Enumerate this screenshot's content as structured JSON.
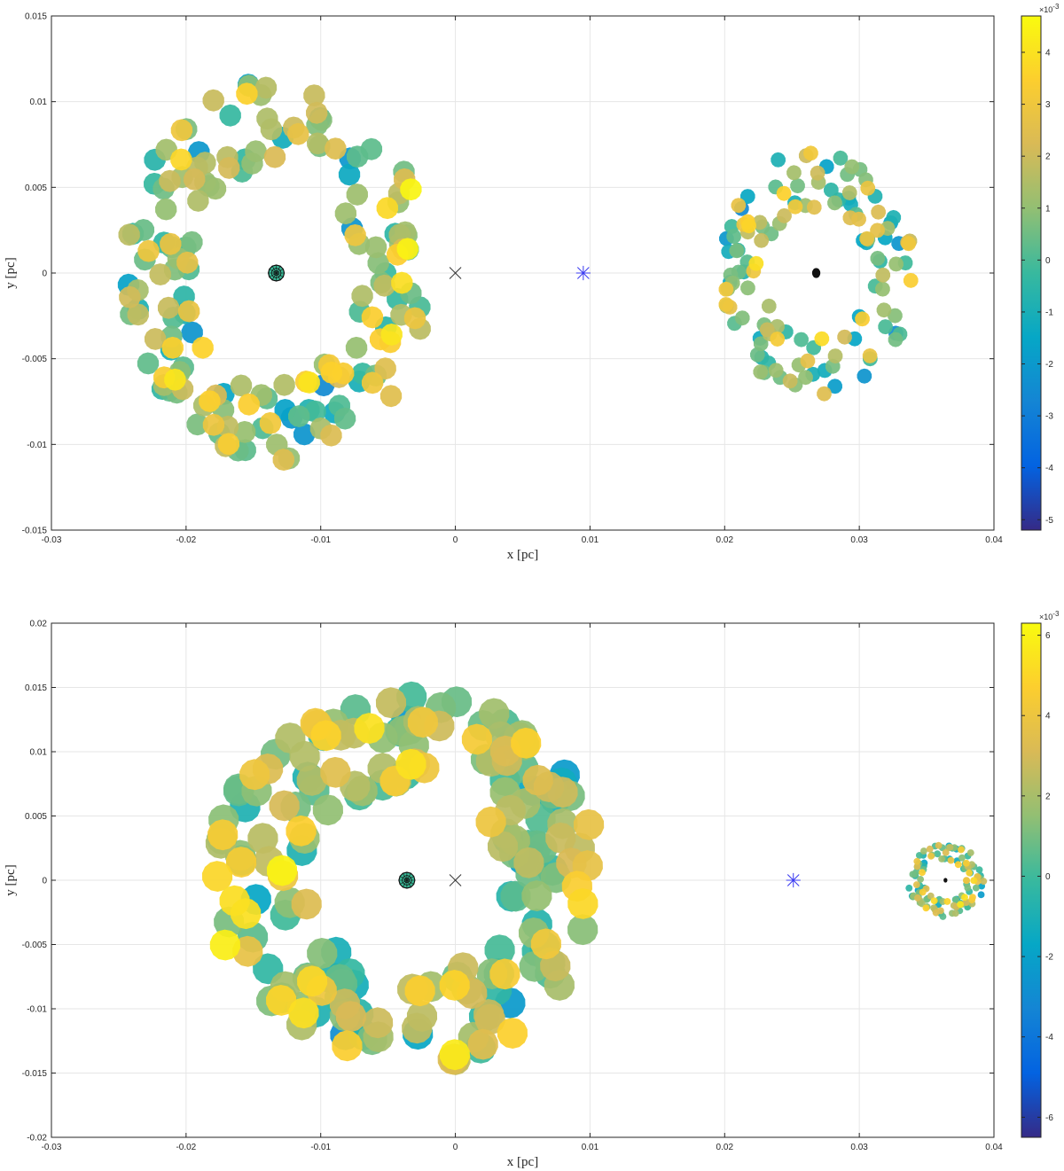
{
  "chart_data": [
    {
      "type": "scatter",
      "xlabel": "x [pc]",
      "ylabel": "y [pc]",
      "xlim": [
        -0.03,
        0.04
      ],
      "ylim": [
        -0.015,
        0.015
      ],
      "x_ticks": [
        "-0.03",
        "-0.02",
        "-0.01",
        "0",
        "0.01",
        "0.02",
        "0.03",
        "0.04"
      ],
      "y_ticks": [
        "0.015",
        "0.01",
        "0.005",
        "0",
        "-0.005",
        "-0.01",
        "-0.015"
      ],
      "grid": true,
      "colorbar": {
        "colormap": "parula",
        "range": [
          -5.2,
          4.7
        ],
        "ticks": [
          "4",
          "3",
          "2",
          "1",
          "0",
          "-1",
          "-2",
          "-3",
          "-4",
          "-5"
        ],
        "exponent_base": "×10",
        "exponent_power": "-3"
      },
      "markers": [
        {
          "symbol": "x",
          "name": "cross",
          "x": 0,
          "y": 0,
          "color": "#333333"
        },
        {
          "symbol": "*",
          "name": "star",
          "x": 0.0095,
          "y": 0,
          "color": "#3a3af0"
        }
      ],
      "clusters": [
        {
          "center": [
            -0.0133,
            0
          ],
          "inner_radius": 0.0062,
          "outer_radius": 0.0112,
          "point_count": 180,
          "point_radius": 0.00082,
          "core": "mesh",
          "seed": 11
        },
        {
          "center": [
            0.0268,
            0
          ],
          "inner_radius": 0.0038,
          "outer_radius": 0.0072,
          "point_count": 130,
          "point_radius": 0.00056,
          "core": "dot",
          "seed": 23
        }
      ]
    },
    {
      "type": "scatter",
      "xlabel": "x [pc]",
      "ylabel": "y [pc]",
      "xlim": [
        -0.03,
        0.04
      ],
      "ylim": [
        -0.02,
        0.02
      ],
      "x_ticks": [
        "-0.03",
        "-0.02",
        "-0.01",
        "0",
        "0.01",
        "0.02",
        "0.03",
        "0.04"
      ],
      "y_ticks": [
        "0.02",
        "0.015",
        "0.01",
        "0.005",
        "0",
        "-0.005",
        "-0.01",
        "-0.015",
        "-0.02"
      ],
      "grid": true,
      "colorbar": {
        "colormap": "parula",
        "range": [
          -6.5,
          6.3
        ],
        "ticks": [
          "6",
          "4",
          "2",
          "0",
          "-2",
          "-4",
          "-6"
        ],
        "exponent_base": "×10",
        "exponent_power": "-3"
      },
      "markers": [
        {
          "symbol": "x",
          "name": "cross",
          "x": 0,
          "y": 0,
          "color": "#333333"
        },
        {
          "symbol": "*",
          "name": "star",
          "x": 0.0251,
          "y": 0,
          "color": "#3a3af0"
        }
      ],
      "clusters": [
        {
          "center": [
            -0.0036,
            0
          ],
          "inner_radius": 0.0075,
          "outer_radius": 0.0145,
          "point_count": 200,
          "point_radius": 0.00115,
          "core": "mesh",
          "seed": 37
        },
        {
          "center": [
            0.0364,
            0
          ],
          "inner_radius": 0.0015,
          "outer_radius": 0.0029,
          "point_count": 120,
          "point_radius": 0.00026,
          "core": "dot",
          "seed": 53
        }
      ]
    }
  ]
}
